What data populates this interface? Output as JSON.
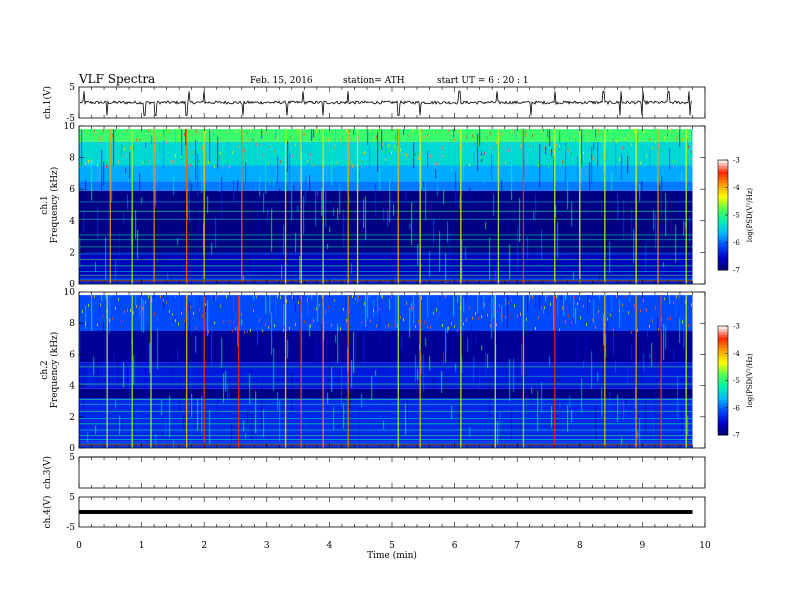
{
  "header": {
    "title": "VLF Spectra",
    "date": "Feb. 15, 2016",
    "station": "station= ATH",
    "start": "start  UT  =    6  : 20 : 1"
  },
  "chart_data": [
    {
      "type": "line",
      "panel": "ch1-waveform",
      "ylabel": "ch.1(V)",
      "ylim": [
        -5,
        5
      ],
      "ytick_labels": [
        "5",
        "-5"
      ],
      "xlim": [
        0,
        10
      ],
      "baseline": 0,
      "spikes": [
        0.08,
        0.45,
        1.05,
        1.22,
        1.72,
        1.76,
        2.0,
        2.62,
        3.32,
        3.58,
        3.9,
        4.3,
        5.1,
        5.45,
        6.08,
        6.68,
        7.22,
        7.6,
        8.38,
        8.65,
        9.0,
        9.42,
        9.75
      ]
    },
    {
      "type": "heatmap",
      "panel": "ch1-spectrogram",
      "ylabel": "ch.1\nFrequency (kHz)",
      "ylim": [
        0,
        10
      ],
      "ytick_labels": [
        "0",
        "2",
        "4",
        "6",
        "8",
        "10"
      ],
      "xlim": [
        0,
        10
      ],
      "colorbar": {
        "label": "log(PSD(V²/Hz)",
        "range": [
          -7,
          -3
        ],
        "tick_labels": [
          "-3",
          "-4",
          "-5",
          "-6",
          "-7"
        ]
      },
      "bands": [
        {
          "kHz": [
            0,
            0.4
          ],
          "level": -6.3
        },
        {
          "kHz": [
            0.4,
            2.0
          ],
          "level": -6.6
        },
        {
          "kHz": [
            2.0,
            5.9
          ],
          "level": -6.9
        },
        {
          "kHz": [
            5.9,
            6.5
          ],
          "level": -5.9
        },
        {
          "kHz": [
            6.5,
            7.5
          ],
          "level": -5.7
        },
        {
          "kHz": [
            7.5,
            9.0
          ],
          "level": -5.4
        },
        {
          "kHz": [
            9.0,
            9.8
          ],
          "level": -4.9
        }
      ],
      "vertical_bursts_min": [
        0.5,
        0.85,
        1.2,
        1.72,
        2.0,
        2.6,
        3.3,
        3.55,
        3.9,
        4.3,
        4.45,
        5.1,
        5.45,
        6.1,
        6.7,
        7.1,
        7.6,
        8.0,
        8.4,
        8.9,
        9.25,
        9.7
      ]
    },
    {
      "type": "heatmap",
      "panel": "ch2-spectrogram",
      "ylabel": "ch.2\nFrequency (kHz)",
      "ylim": [
        0,
        10
      ],
      "ytick_labels": [
        "0",
        "2",
        "4",
        "6",
        "8",
        "10"
      ],
      "xlim": [
        0,
        10
      ],
      "colorbar": {
        "label": "log(PSD(V²/Hz)",
        "range": [
          -7,
          -3
        ],
        "tick_labels": [
          "-3",
          "-4",
          "-5",
          "-6",
          "-7"
        ]
      },
      "bands": [
        {
          "kHz": [
            0,
            0.4
          ],
          "level": -6.2
        },
        {
          "kHz": [
            0.4,
            3.2
          ],
          "level": -6.3
        },
        {
          "kHz": [
            3.2,
            3.8
          ],
          "level": -6.9
        },
        {
          "kHz": [
            3.8,
            5.5
          ],
          "level": -6.4
        },
        {
          "kHz": [
            5.5,
            7.5
          ],
          "level": -6.8
        },
        {
          "kHz": [
            7.5,
            9.8
          ],
          "level": -6.1
        }
      ],
      "vertical_bursts_min": [
        0.45,
        0.85,
        1.15,
        1.72,
        2.0,
        2.55,
        3.3,
        3.55,
        3.9,
        4.3,
        5.1,
        5.45,
        6.1,
        6.65,
        7.1,
        7.6,
        8.4,
        8.9,
        9.3,
        9.7
      ]
    },
    {
      "type": "line",
      "panel": "ch3-waveform",
      "ylabel": "ch.3(V)",
      "ylim": [
        -5,
        5
      ],
      "ytick_labels": [
        "5"
      ],
      "xlim": [
        0,
        10
      ],
      "baseline": 5
    },
    {
      "type": "line",
      "panel": "ch4-waveform",
      "ylabel": "ch.4(V)",
      "ylim": [
        -5,
        5
      ],
      "ytick_labels": [
        "5",
        "-5"
      ],
      "xlim": [
        0,
        10
      ],
      "baseline": 0
    }
  ],
  "xaxis": {
    "label": "Time  (min)",
    "tick_labels": [
      "0",
      "1",
      "2",
      "3",
      "4",
      "5",
      "6",
      "7",
      "8",
      "9",
      "10"
    ],
    "data_end_min": 9.8
  },
  "colors": {
    "ramp": [
      "#000070",
      "#0000c8",
      "#0046ff",
      "#00b4ff",
      "#00f0b4",
      "#50ff50",
      "#ffff00",
      "#ffa000",
      "#ff2800",
      "#ffffff"
    ]
  }
}
